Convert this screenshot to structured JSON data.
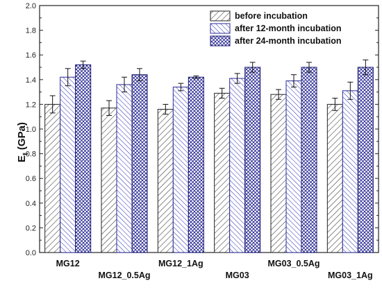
{
  "chart_data": {
    "type": "bar",
    "title": "",
    "xlabel": "",
    "ylabel": "E",
    "ylabel_subscript": "t",
    "ylabel_unit": " (GPa)",
    "ylim": [
      0.0,
      2.0
    ],
    "yticks": [
      "0.0",
      "0.2",
      "0.4",
      "0.6",
      "0.8",
      "1.0",
      "1.2",
      "1.4",
      "1.6",
      "1.8",
      "2.0"
    ],
    "categories": [
      "MG12",
      "MG12_0.5Ag",
      "MG12_1Ag",
      "MG03",
      "MG03_0.5Ag",
      "MG03_1Ag"
    ],
    "series": [
      {
        "name": "before incubation",
        "values": [
          1.2,
          1.17,
          1.16,
          1.29,
          1.28,
          1.2
        ],
        "errors": [
          0.07,
          0.06,
          0.04,
          0.04,
          0.04,
          0.05
        ]
      },
      {
        "name": "after 12-month incubation",
        "values": [
          1.42,
          1.36,
          1.34,
          1.41,
          1.39,
          1.31
        ],
        "errors": [
          0.07,
          0.06,
          0.03,
          0.04,
          0.05,
          0.07
        ]
      },
      {
        "name": "after 24-month incubation",
        "values": [
          1.52,
          1.44,
          1.42,
          1.5,
          1.5,
          1.5
        ],
        "errors": [
          0.03,
          0.05,
          0.01,
          0.04,
          0.04,
          0.06
        ]
      }
    ],
    "legend_position": "top-right",
    "grid": false,
    "colors": {
      "before": "#444444",
      "after12": "#3a3ab8",
      "after24": "#1a1a8c"
    }
  }
}
